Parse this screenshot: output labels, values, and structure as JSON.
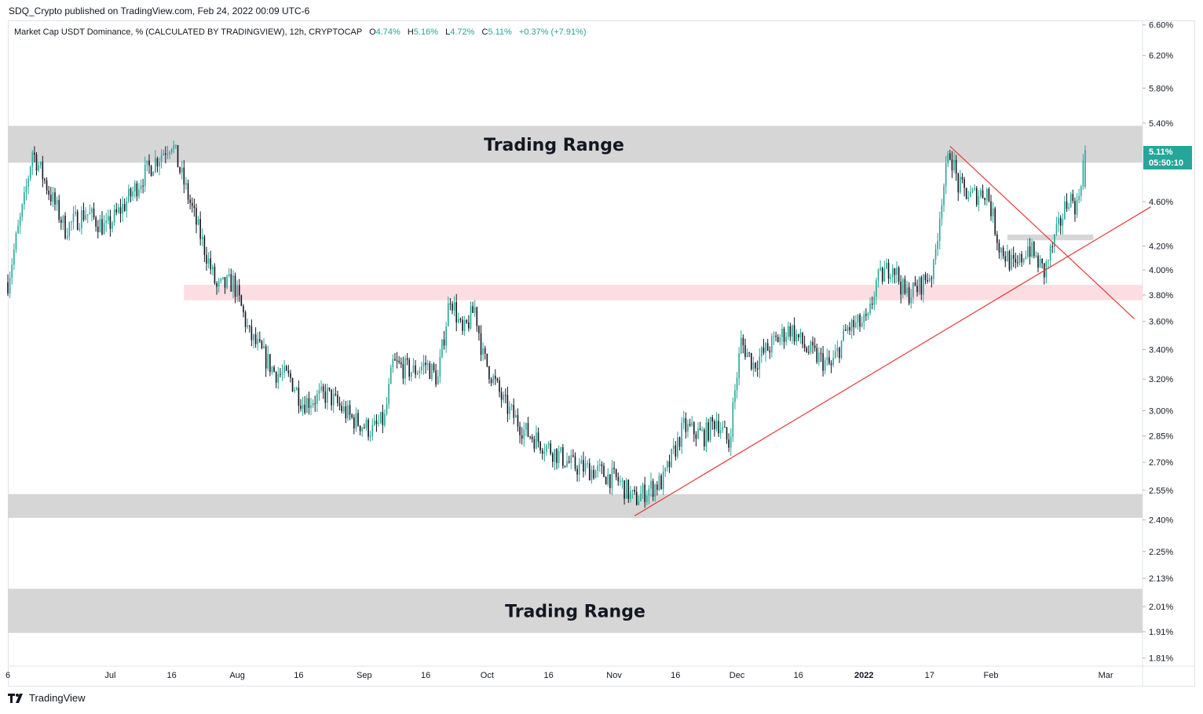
{
  "header": {
    "published": "SDQ_Crypto published on TradingView.com, Feb 24, 2022 00:09 UTC-6"
  },
  "legend": {
    "symbol": "Market Cap USDT Dominance, % (CALCULATED BY TRADINGVIEW), 12h, CRYPTOCAP",
    "open_label": "O",
    "open": "4.74%",
    "high_label": "H",
    "high": "5.16%",
    "low_label": "L",
    "low": "4.72%",
    "close_label": "C",
    "close": "5.11%",
    "change": "+0.37% (+7.91%)"
  },
  "price_label": {
    "value": "5.11%",
    "countdown": "05:50:10"
  },
  "footer": {
    "brand": "TradingView"
  },
  "colors": {
    "up": "#26a69a",
    "down": "#131722",
    "trend": "#e53935",
    "zone_gray": "#d6d6d6",
    "zone_pink": "#fcdde2",
    "price_box": "#26a69a"
  },
  "chart_data": {
    "type": "candlestick",
    "title": "Market Cap USDT Dominance, % (CALCULATED BY TRADINGVIEW), 12h, CRYPTOCAP",
    "scale": "log",
    "ylim": [
      1.78,
      6.65
    ],
    "y_ticks": [
      6.6,
      6.2,
      5.8,
      5.4,
      4.6,
      4.2,
      4.0,
      3.8,
      3.6,
      3.4,
      3.2,
      3.0,
      2.85,
      2.7,
      2.55,
      2.4,
      2.25,
      2.13,
      2.01,
      1.91,
      1.81
    ],
    "y_tick_labels": [
      "6.60%",
      "6.20%",
      "5.80%",
      "5.40%",
      "4.60%",
      "4.20%",
      "4.00%",
      "3.80%",
      "3.60%",
      "3.40%",
      "3.20%",
      "3.00%",
      "2.85%",
      "2.70%",
      "2.55%",
      "2.40%",
      "2.25%",
      "2.13%",
      "2.01%",
      "1.91%",
      "1.81%"
    ],
    "x_start": "2021-06-06",
    "x_end": "2022-03-10",
    "x_ticks": [
      {
        "label": "6",
        "date": "2021-06-06",
        "bold": false
      },
      {
        "label": "Jul",
        "date": "2021-07-01",
        "bold": false
      },
      {
        "label": "16",
        "date": "2021-07-16",
        "bold": false
      },
      {
        "label": "Aug",
        "date": "2021-08-01",
        "bold": false
      },
      {
        "label": "16",
        "date": "2021-08-16",
        "bold": false
      },
      {
        "label": "Sep",
        "date": "2021-09-01",
        "bold": false
      },
      {
        "label": "16",
        "date": "2021-09-16",
        "bold": false
      },
      {
        "label": "Oct",
        "date": "2021-10-01",
        "bold": false
      },
      {
        "label": "16",
        "date": "2021-10-16",
        "bold": false
      },
      {
        "label": "Nov",
        "date": "2021-11-01",
        "bold": false
      },
      {
        "label": "16",
        "date": "2021-11-16",
        "bold": false
      },
      {
        "label": "Dec",
        "date": "2021-12-01",
        "bold": false
      },
      {
        "label": "16",
        "date": "2021-12-16",
        "bold": false
      },
      {
        "label": "2022",
        "date": "2022-01-01",
        "bold": true
      },
      {
        "label": "17",
        "date": "2022-01-17",
        "bold": false
      },
      {
        "label": "Feb",
        "date": "2022-02-01",
        "bold": false
      },
      {
        "label": "Mar",
        "date": "2022-03-01",
        "bold": false
      }
    ],
    "path_anchors": [
      [
        "2021-06-06",
        3.9
      ],
      [
        "2021-06-10",
        4.6
      ],
      [
        "2021-06-12",
        5.1
      ],
      [
        "2021-06-16",
        4.7
      ],
      [
        "2021-06-20",
        4.35
      ],
      [
        "2021-06-25",
        4.5
      ],
      [
        "2021-06-30",
        4.35
      ],
      [
        "2021-07-05",
        4.6
      ],
      [
        "2021-07-10",
        4.9
      ],
      [
        "2021-07-16",
        5.2
      ],
      [
        "2021-07-18",
        4.9
      ],
      [
        "2021-07-22",
        4.4
      ],
      [
        "2021-07-27",
        3.85
      ],
      [
        "2021-07-31",
        3.9
      ],
      [
        "2021-08-04",
        3.5
      ],
      [
        "2021-08-10",
        3.25
      ],
      [
        "2021-08-14",
        3.2
      ],
      [
        "2021-08-17",
        3.05
      ],
      [
        "2021-08-23",
        3.1
      ],
      [
        "2021-08-29",
        2.95
      ],
      [
        "2021-09-03",
        2.88
      ],
      [
        "2021-09-06",
        2.95
      ],
      [
        "2021-09-08",
        3.3
      ],
      [
        "2021-09-13",
        3.25
      ],
      [
        "2021-09-16",
        3.3
      ],
      [
        "2021-09-19",
        3.2
      ],
      [
        "2021-09-22",
        3.8
      ],
      [
        "2021-09-25",
        3.5
      ],
      [
        "2021-09-28",
        3.7
      ],
      [
        "2021-09-30",
        3.35
      ],
      [
        "2021-10-05",
        3.05
      ],
      [
        "2021-10-10",
        2.88
      ],
      [
        "2021-10-16",
        2.78
      ],
      [
        "2021-10-22",
        2.68
      ],
      [
        "2021-10-28",
        2.65
      ],
      [
        "2021-11-02",
        2.6
      ],
      [
        "2021-11-06",
        2.5
      ],
      [
        "2021-11-09",
        2.55
      ],
      [
        "2021-11-13",
        2.6
      ],
      [
        "2021-11-18",
        2.9
      ],
      [
        "2021-11-23",
        2.85
      ],
      [
        "2021-11-26",
        2.95
      ],
      [
        "2021-11-29",
        2.8
      ],
      [
        "2021-12-02",
        3.45
      ],
      [
        "2021-12-05",
        3.3
      ],
      [
        "2021-12-10",
        3.45
      ],
      [
        "2021-12-14",
        3.55
      ],
      [
        "2021-12-18",
        3.4
      ],
      [
        "2021-12-24",
        3.28
      ],
      [
        "2021-12-28",
        3.55
      ],
      [
        "2022-01-02",
        3.6
      ],
      [
        "2022-01-04",
        3.9
      ],
      [
        "2022-01-08",
        4.05
      ],
      [
        "2022-01-11",
        3.8
      ],
      [
        "2022-01-14",
        3.85
      ],
      [
        "2022-01-18",
        4.0
      ],
      [
        "2022-01-20",
        4.65
      ],
      [
        "2022-01-22",
        5.1
      ],
      [
        "2022-01-24",
        4.75
      ],
      [
        "2022-01-27",
        4.65
      ],
      [
        "2022-01-31",
        4.7
      ],
      [
        "2022-02-03",
        4.2
      ],
      [
        "2022-02-07",
        4.0
      ],
      [
        "2022-02-10",
        4.2
      ],
      [
        "2022-02-14",
        3.98
      ],
      [
        "2022-02-17",
        4.3
      ],
      [
        "2022-02-20",
        4.65
      ],
      [
        "2022-02-22",
        4.55
      ],
      [
        "2022-02-24",
        5.11
      ]
    ],
    "annotations": {
      "zones": [
        {
          "label": "Trading Range",
          "from": 4.98,
          "to": 5.37,
          "start": "2021-06-06",
          "color": "#d6d6d6"
        },
        {
          "label": "",
          "from": 2.41,
          "to": 2.53,
          "start": "2021-06-06",
          "color": "#d6d6d6"
        },
        {
          "label": "Trading Range",
          "from": 1.905,
          "to": 2.085,
          "start": "2021-06-06",
          "color": "#d6d6d6"
        },
        {
          "label": "",
          "from": 3.76,
          "to": 3.88,
          "start": "2021-07-19",
          "color": "#fcdde2"
        },
        {
          "label": "",
          "from": 4.25,
          "to": 4.3,
          "start": "2022-02-05",
          "end": "2022-02-26",
          "color": "#d6d6d6"
        }
      ],
      "trendlines": [
        {
          "from": [
            "2021-11-06",
            2.42
          ],
          "to": [
            "2022-03-12",
            4.55
          ]
        },
        {
          "from": [
            "2022-01-22",
            5.15
          ],
          "to": [
            "2022-03-08",
            3.62
          ]
        }
      ]
    },
    "last": {
      "open": 4.74,
      "high": 5.16,
      "low": 4.72,
      "close": 5.11
    }
  }
}
